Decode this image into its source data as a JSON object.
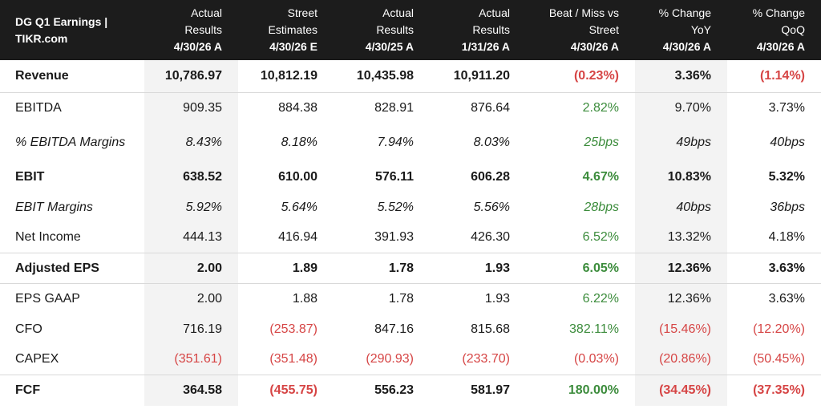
{
  "header": {
    "title": "DG Q1 Earnings | TIKR.com",
    "columns": [
      {
        "line1": "Actual",
        "line2": "Results",
        "date": "4/30/26 A"
      },
      {
        "line1": "Street",
        "line2": "Estimates",
        "date": "4/30/26 E"
      },
      {
        "line1": "Actual",
        "line2": "Results",
        "date": "4/30/25 A"
      },
      {
        "line1": "Actual",
        "line2": "Results",
        "date": "1/31/26 A"
      },
      {
        "line1": "Beat / Miss vs",
        "line2": "Street",
        "date": "4/30/26 A"
      },
      {
        "line1": "% Change",
        "line2": "YoY",
        "date": "4/30/26 A"
      },
      {
        "line1": "% Change",
        "line2": "QoQ",
        "date": "4/30/26 A"
      }
    ]
  },
  "rows": [
    {
      "name": "Revenue",
      "values": [
        "10,786.97",
        "10,812.19",
        "10,435.98",
        "10,911.20",
        "(0.23%)",
        "3.36%",
        "(1.14%)"
      ],
      "colors": [
        "",
        "",
        "",
        "",
        "neg",
        "",
        "neg"
      ]
    },
    {
      "name": "EBITDA",
      "values": [
        "909.35",
        "884.38",
        "828.91",
        "876.64",
        "2.82%",
        "9.70%",
        "3.73%"
      ],
      "colors": [
        "",
        "",
        "",
        "",
        "pos",
        "",
        ""
      ]
    },
    {
      "name": "% EBITDA Margins",
      "values": [
        "8.43%",
        "8.18%",
        "7.94%",
        "8.03%",
        "25bps",
        "49bps",
        "40bps"
      ],
      "colors": [
        "",
        "",
        "",
        "",
        "pos",
        "",
        ""
      ]
    },
    {
      "name": "EBIT",
      "values": [
        "638.52",
        "610.00",
        "576.11",
        "606.28",
        "4.67%",
        "10.83%",
        "5.32%"
      ],
      "colors": [
        "",
        "",
        "",
        "",
        "pos",
        "",
        ""
      ]
    },
    {
      "name": "EBIT Margins",
      "values": [
        "5.92%",
        "5.64%",
        "5.52%",
        "5.56%",
        "28bps",
        "40bps",
        "36bps"
      ],
      "colors": [
        "",
        "",
        "",
        "",
        "pos",
        "",
        ""
      ]
    },
    {
      "name": "Net Income",
      "values": [
        "444.13",
        "416.94",
        "391.93",
        "426.30",
        "6.52%",
        "13.32%",
        "4.18%"
      ],
      "colors": [
        "",
        "",
        "",
        "",
        "pos",
        "",
        ""
      ]
    },
    {
      "name": "Adjusted EPS",
      "values": [
        "2.00",
        "1.89",
        "1.78",
        "1.93",
        "6.05%",
        "12.36%",
        "3.63%"
      ],
      "colors": [
        "",
        "",
        "",
        "",
        "pos",
        "",
        ""
      ]
    },
    {
      "name": "EPS GAAP",
      "values": [
        "2.00",
        "1.88",
        "1.78",
        "1.93",
        "6.22%",
        "12.36%",
        "3.63%"
      ],
      "colors": [
        "",
        "",
        "",
        "",
        "pos",
        "",
        ""
      ]
    },
    {
      "name": "CFO",
      "values": [
        "716.19",
        "(253.87)",
        "847.16",
        "815.68",
        "382.11%",
        "(15.46%)",
        "(12.20%)"
      ],
      "colors": [
        "",
        "neg",
        "",
        "",
        "pos",
        "neg",
        "neg"
      ]
    },
    {
      "name": "CAPEX",
      "values": [
        "(351.61)",
        "(351.48)",
        "(290.93)",
        "(233.70)",
        "(0.03%)",
        "(20.86%)",
        "(50.45%)"
      ],
      "colors": [
        "neg",
        "neg",
        "neg",
        "neg",
        "neg",
        "neg",
        "neg"
      ]
    },
    {
      "name": "FCF",
      "values": [
        "364.58",
        "(455.75)",
        "556.23",
        "581.97",
        "180.00%",
        "(34.45%)",
        "(37.35%)"
      ],
      "colors": [
        "",
        "neg",
        "",
        "",
        "pos",
        "neg",
        "neg"
      ]
    }
  ],
  "colors": {
    "header_bg": "#1c1c1c",
    "negative": "#d64545",
    "positive": "#3c8c3c",
    "shade": "#f3f3f3"
  }
}
